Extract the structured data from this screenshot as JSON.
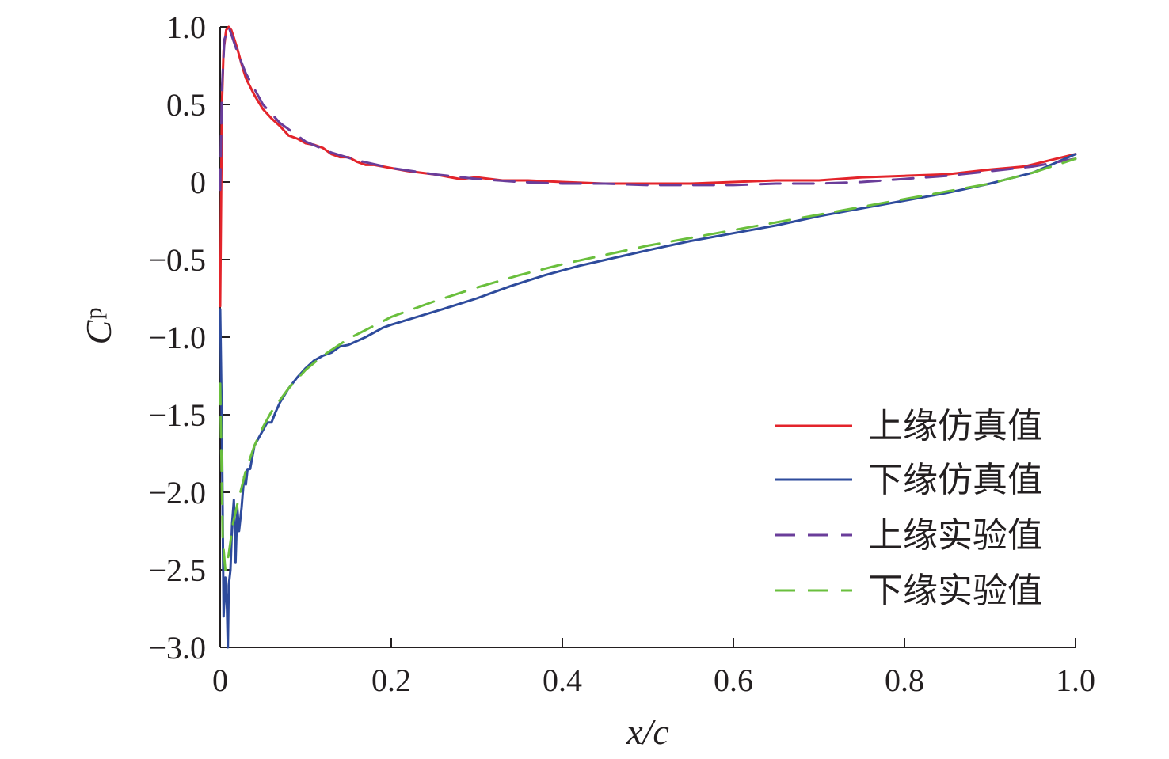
{
  "chart_data": {
    "type": "line",
    "xlabel_main": "x/c",
    "ylabel_main": "C",
    "ylabel_sub": "p",
    "xlim": [
      0,
      1.0
    ],
    "ylim": [
      -3.0,
      1.0
    ],
    "xticks": [
      {
        "value": 0,
        "label": "0"
      },
      {
        "value": 0.2,
        "label": "0.2"
      },
      {
        "value": 0.4,
        "label": "0.4"
      },
      {
        "value": 0.6,
        "label": "0.6"
      },
      {
        "value": 0.8,
        "label": "0.8"
      },
      {
        "value": 1.0,
        "label": "1.0"
      }
    ],
    "yticks": [
      {
        "value": 1.0,
        "label": "1.0"
      },
      {
        "value": 0.5,
        "label": "0.5"
      },
      {
        "value": 0,
        "label": "0"
      },
      {
        "value": -0.5,
        "label": "−0.5"
      },
      {
        "value": -1.0,
        "label": "−1.0"
      },
      {
        "value": -1.5,
        "label": "−1.5"
      },
      {
        "value": -2.0,
        "label": "−2.0"
      },
      {
        "value": -2.5,
        "label": "−2.5"
      },
      {
        "value": -3.0,
        "label": "−3.0"
      }
    ],
    "grid": false,
    "legend_position": "right",
    "series": [
      {
        "name": "上缘仿真值",
        "color": "#e3242b",
        "dash": "solid",
        "x": [
          0,
          0.002,
          0.004,
          0.007,
          0.01,
          0.013,
          0.016,
          0.02,
          0.025,
          0.03,
          0.04,
          0.05,
          0.06,
          0.07,
          0.08,
          0.09,
          0.1,
          0.11,
          0.12,
          0.13,
          0.14,
          0.15,
          0.16,
          0.17,
          0.18,
          0.2,
          0.22,
          0.25,
          0.28,
          0.3,
          0.33,
          0.36,
          0.4,
          0.45,
          0.5,
          0.55,
          0.6,
          0.65,
          0.7,
          0.75,
          0.8,
          0.85,
          0.9,
          0.94,
          0.97,
          1.0
        ],
        "values": [
          -0.8,
          0.5,
          0.85,
          0.98,
          1.0,
          0.98,
          0.93,
          0.86,
          0.76,
          0.67,
          0.56,
          0.47,
          0.41,
          0.36,
          0.3,
          0.28,
          0.25,
          0.24,
          0.22,
          0.18,
          0.16,
          0.16,
          0.13,
          0.11,
          0.11,
          0.09,
          0.07,
          0.05,
          0.02,
          0.03,
          0.01,
          0.01,
          0.0,
          -0.01,
          -0.01,
          -0.01,
          0.0,
          0.01,
          0.01,
          0.03,
          0.04,
          0.05,
          0.08,
          0.1,
          0.14,
          0.18
        ]
      },
      {
        "name": "下缘仿真值",
        "color": "#2e4b9c",
        "dash": "solid",
        "x": [
          0,
          0.002,
          0.004,
          0.006,
          0.008,
          0.009,
          0.01,
          0.012,
          0.014,
          0.016,
          0.018,
          0.02,
          0.022,
          0.025,
          0.028,
          0.03,
          0.032,
          0.035,
          0.04,
          0.045,
          0.05,
          0.055,
          0.06,
          0.065,
          0.07,
          0.08,
          0.09,
          0.1,
          0.11,
          0.12,
          0.13,
          0.14,
          0.15,
          0.17,
          0.19,
          0.2,
          0.23,
          0.26,
          0.3,
          0.34,
          0.38,
          0.42,
          0.46,
          0.5,
          0.55,
          0.6,
          0.65,
          0.7,
          0.75,
          0.8,
          0.85,
          0.9,
          0.95,
          1.0
        ],
        "values": [
          -0.82,
          -1.6,
          -2.8,
          -2.55,
          -2.75,
          -3.0,
          -2.6,
          -2.5,
          -2.2,
          -2.05,
          -2.45,
          -2.1,
          -2.25,
          -2.1,
          -1.9,
          -1.95,
          -1.85,
          -1.85,
          -1.7,
          -1.65,
          -1.6,
          -1.55,
          -1.55,
          -1.48,
          -1.42,
          -1.33,
          -1.26,
          -1.2,
          -1.15,
          -1.12,
          -1.1,
          -1.06,
          -1.05,
          -1.0,
          -0.94,
          -0.92,
          -0.87,
          -0.82,
          -0.75,
          -0.67,
          -0.6,
          -0.54,
          -0.49,
          -0.44,
          -0.38,
          -0.33,
          -0.28,
          -0.22,
          -0.17,
          -0.12,
          -0.07,
          -0.01,
          0.06,
          0.18
        ]
      },
      {
        "name": "上缘实验值",
        "color": "#6a3d9a",
        "dash": "dashed",
        "x": [
          0,
          0.002,
          0.005,
          0.01,
          0.02,
          0.03,
          0.05,
          0.07,
          0.1,
          0.13,
          0.16,
          0.2,
          0.25,
          0.3,
          0.35,
          0.4,
          0.45,
          0.5,
          0.55,
          0.6,
          0.65,
          0.7,
          0.75,
          0.8,
          0.85,
          0.9,
          0.95,
          1.0
        ],
        "values": [
          -0.05,
          0.6,
          0.92,
          1.0,
          0.84,
          0.7,
          0.5,
          0.38,
          0.26,
          0.19,
          0.14,
          0.09,
          0.05,
          0.02,
          0.0,
          -0.01,
          -0.01,
          -0.02,
          -0.02,
          -0.02,
          -0.01,
          -0.01,
          0.0,
          0.02,
          0.04,
          0.07,
          0.1,
          0.15
        ]
      },
      {
        "name": "下缘实验值",
        "color": "#6abf3d",
        "dash": "dashed",
        "x": [
          0,
          0.003,
          0.006,
          0.01,
          0.015,
          0.02,
          0.03,
          0.04,
          0.05,
          0.06,
          0.08,
          0.1,
          0.12,
          0.15,
          0.2,
          0.25,
          0.3,
          0.35,
          0.4,
          0.45,
          0.5,
          0.55,
          0.6,
          0.65,
          0.7,
          0.75,
          0.8,
          0.85,
          0.9,
          0.95,
          1.0
        ],
        "values": [
          -1.3,
          -2.3,
          -2.5,
          -2.4,
          -2.2,
          -2.08,
          -1.86,
          -1.7,
          -1.58,
          -1.48,
          -1.33,
          -1.21,
          -1.12,
          -1.01,
          -0.87,
          -0.77,
          -0.68,
          -0.6,
          -0.53,
          -0.47,
          -0.41,
          -0.36,
          -0.31,
          -0.26,
          -0.21,
          -0.16,
          -0.11,
          -0.06,
          -0.01,
          0.06,
          0.15
        ]
      }
    ]
  }
}
